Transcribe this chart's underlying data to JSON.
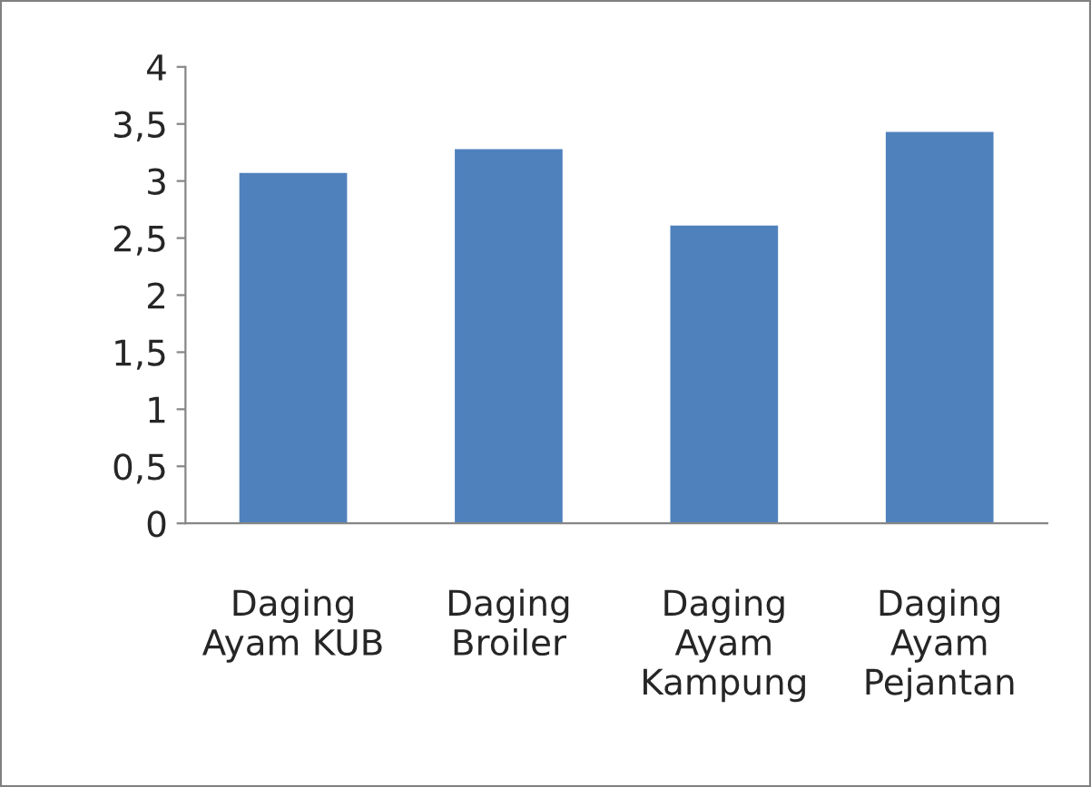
{
  "chart_data": {
    "type": "bar",
    "categories": [
      "Daging\nAyam KUB",
      "Daging\nBroiler",
      "Daging\nAyam\nKampung",
      "Daging\nAyam\nPejantan"
    ],
    "values": [
      3.07,
      3.28,
      2.61,
      3.43
    ],
    "color": "#4f81bd",
    "ylim": [
      0,
      4
    ],
    "yticks": [
      0,
      {
        "value": 0.5,
        "label": "0,5"
      },
      1,
      {
        "value": 1.5,
        "label": "1,5"
      },
      2,
      {
        "value": 2.5,
        "label": "2,5"
      },
      3,
      {
        "value": 3.5,
        "label": "3,5"
      },
      4
    ],
    "grid": false,
    "legend": false
  }
}
